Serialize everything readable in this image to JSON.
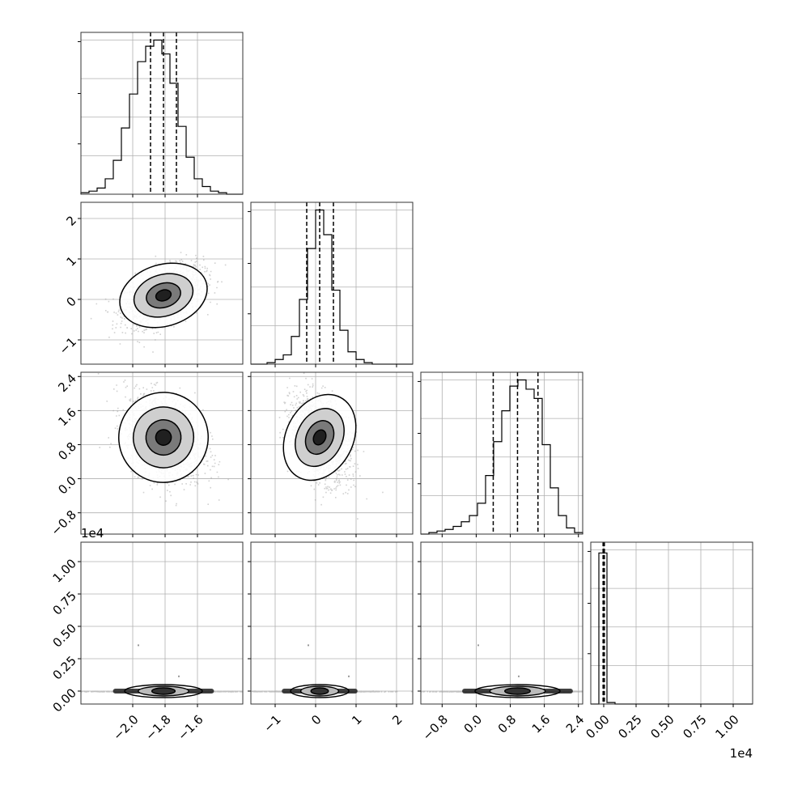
{
  "chart_data": {
    "type": "corner",
    "variables": [
      {
        "range": [
          -2.32,
          -1.32
        ],
        "ticks": [
          -2.0,
          -1.8,
          -1.6
        ],
        "tick_labels": [
          "−2.0",
          "−1.8",
          "−1.6"
        ],
        "exponent_label": ""
      },
      {
        "range": [
          -1.6,
          2.4
        ],
        "ticks": [
          -1,
          0,
          1,
          2
        ],
        "tick_labels": [
          "−1",
          "0",
          "1",
          "2"
        ],
        "exponent_label": ""
      },
      {
        "range": [
          -1.3,
          2.5
        ],
        "ticks": [
          -0.8,
          0.0,
          0.8,
          1.6,
          2.4
        ],
        "tick_labels": [
          "−0.8",
          "0.0",
          "0.8",
          "1.6",
          "2.4"
        ],
        "exponent_label": ""
      },
      {
        "range": [
          -0.1,
          1.15
        ],
        "ticks": [
          0.0,
          0.25,
          0.5,
          0.75,
          1.0
        ],
        "tick_labels": [
          "0.00",
          "0.25",
          "0.50",
          "0.75",
          "1.00"
        ],
        "exponent_label": "1e4"
      }
    ],
    "histograms": [
      {
        "quantiles": [
          -1.89,
          -1.81,
          -1.73
        ],
        "counts": [
          0.01,
          0.02,
          0.04,
          0.1,
          0.22,
          0.43,
          0.65,
          0.86,
          0.96,
          1.0,
          0.91,
          0.72,
          0.44,
          0.24,
          0.1,
          0.05,
          0.02,
          0.01,
          0.0,
          0.0
        ]
      },
      {
        "quantiles": [
          -0.22,
          0.1,
          0.44
        ],
        "counts": [
          0.0,
          0.0,
          0.01,
          0.03,
          0.06,
          0.18,
          0.42,
          0.75,
          1.0,
          0.84,
          0.48,
          0.22,
          0.08,
          0.03,
          0.01,
          0.0,
          0.0,
          0.0,
          0.0,
          0.0
        ]
      },
      {
        "quantiles": [
          0.4,
          0.97,
          1.45
        ],
        "counts": [
          0.0,
          0.01,
          0.02,
          0.03,
          0.05,
          0.08,
          0.12,
          0.2,
          0.38,
          0.6,
          0.8,
          0.96,
          1.0,
          0.94,
          0.88,
          0.58,
          0.3,
          0.12,
          0.04,
          0.01
        ]
      },
      {
        "quantiles": [
          -0.005,
          0.0,
          0.005
        ],
        "counts": [
          0.0,
          0.98,
          0.01,
          0.0,
          0.0,
          0.0,
          0.0,
          0.0,
          0.0,
          0.0,
          0.0,
          0.0,
          0.0,
          0.0,
          0.0,
          0.0,
          0.0,
          0.0,
          0.0,
          0.0
        ]
      }
    ],
    "scatter_2d": [
      {
        "row": 1,
        "col": 0,
        "mean": [
          -1.81,
          0.1
        ],
        "sd": [
          0.12,
          0.36
        ],
        "corr": 0.45
      },
      {
        "row": 2,
        "col": 0,
        "mean": [
          -1.81,
          0.97
        ],
        "sd": [
          0.12,
          0.5
        ],
        "corr": -0.3
      },
      {
        "row": 2,
        "col": 1,
        "mean": [
          0.1,
          0.97
        ],
        "sd": [
          0.36,
          0.5
        ],
        "corr": -0.4
      },
      {
        "row": 3,
        "col": 0,
        "mean": [
          -1.81,
          0.0
        ],
        "sd": [
          0.12,
          0.0012
        ],
        "corr": 0.0
      },
      {
        "row": 3,
        "col": 1,
        "mean": [
          0.1,
          0.0
        ],
        "sd": [
          0.36,
          0.0012
        ],
        "corr": 0.0
      },
      {
        "row": 3,
        "col": 2,
        "mean": [
          0.97,
          0.0
        ],
        "sd": [
          0.5,
          0.0012
        ],
        "corr": 0.0
      }
    ],
    "title": "",
    "grid": true
  }
}
